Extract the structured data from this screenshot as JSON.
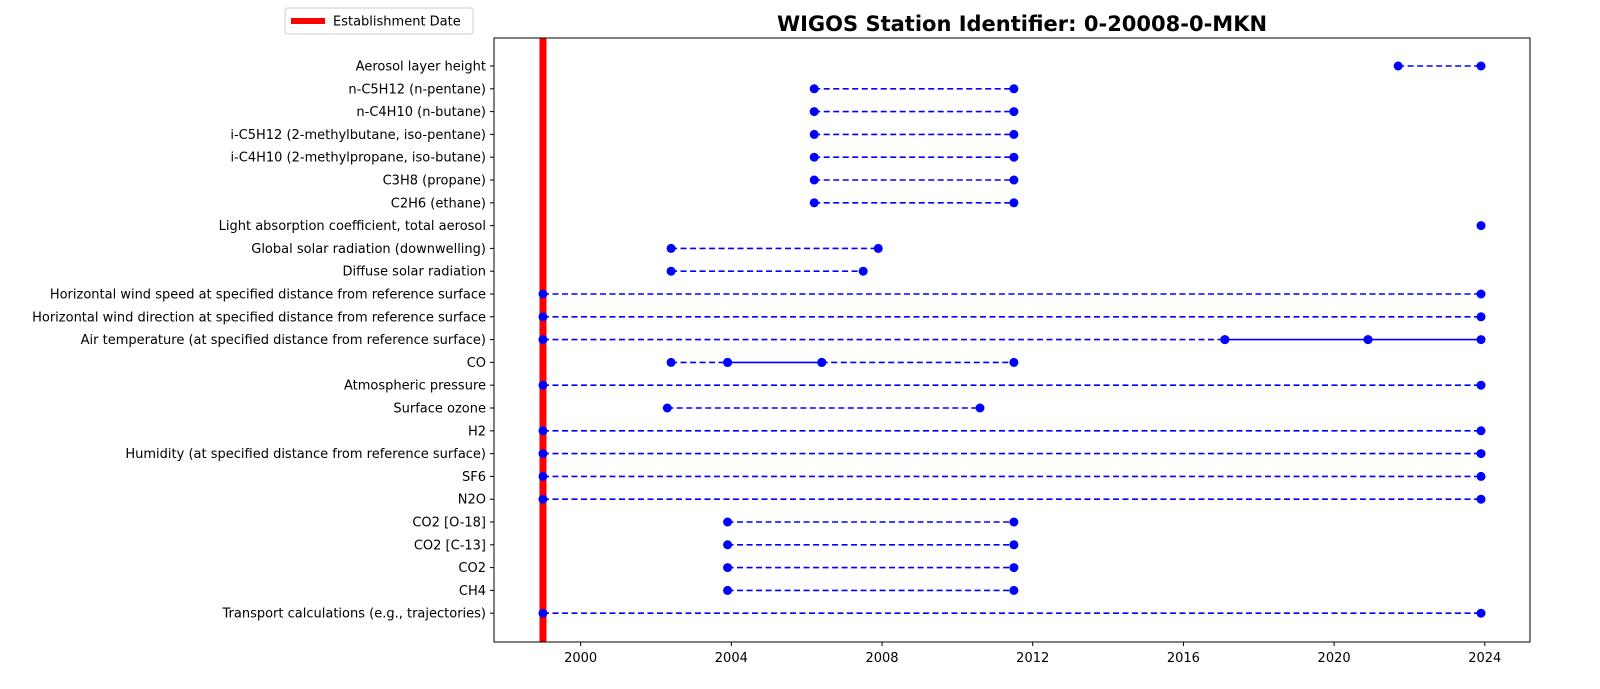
{
  "chart_data": {
    "type": "timeline",
    "title": "WIGOS Station Identifier: 0-20008-0-MKN",
    "xlabel": "",
    "ylabel": "",
    "xlim": [
      1997.7,
      2025.2
    ],
    "xticks": [
      "2000",
      "2004",
      "2008",
      "2012",
      "2016",
      "2020",
      "2024"
    ],
    "grid": false,
    "legend": {
      "placement": "top-left (outside, above axes)",
      "entries": [
        "Establishment Date"
      ]
    },
    "establishment_date": 1999.0,
    "colors": {
      "marker": "#0000ff",
      "line": "#0000ff",
      "establishment": "#ff0000",
      "axis": "#000000"
    },
    "line_styles": {
      "dashed": "observation gap / period",
      "solid": "continuous period"
    },
    "categories": [
      "Aerosol layer height",
      "n-C5H12 (n-pentane)",
      "n-C4H10 (n-butane)",
      "i-C5H12 (2-methylbutane, iso-pentane)",
      "i-C4H10 (2-methylpropane, iso-butane)",
      "C3H8 (propane)",
      "C2H6 (ethane)",
      "Light absorption coefficient, total aerosol",
      "Global solar radiation (downwelling)",
      "Diffuse solar radiation",
      "Horizontal wind speed at specified distance from reference surface",
      "Horizontal wind direction at specified distance from reference surface",
      "Air temperature (at specified distance from reference surface)",
      "CO",
      "Atmospheric pressure",
      "Surface ozone",
      "H2",
      "Humidity  (at specified distance from reference surface)",
      "SF6",
      "N2O",
      "CO2 [O-18]",
      "CO2 [C-13]",
      "CO2",
      "CH4",
      "Transport calculations (e.g., trajectories)"
    ],
    "series": [
      {
        "segments": [
          {
            "x": [
              2021.7,
              2023.9
            ],
            "style": "dashed"
          }
        ]
      },
      {
        "segments": [
          {
            "x": [
              2006.2,
              2011.5
            ],
            "style": "dashed"
          }
        ]
      },
      {
        "segments": [
          {
            "x": [
              2006.2,
              2011.5
            ],
            "style": "dashed"
          }
        ]
      },
      {
        "segments": [
          {
            "x": [
              2006.2,
              2011.5
            ],
            "style": "dashed"
          }
        ]
      },
      {
        "segments": [
          {
            "x": [
              2006.2,
              2011.5
            ],
            "style": "dashed"
          }
        ]
      },
      {
        "segments": [
          {
            "x": [
              2006.2,
              2011.5
            ],
            "style": "dashed"
          }
        ]
      },
      {
        "segments": [
          {
            "x": [
              2006.2,
              2011.5
            ],
            "style": "dashed"
          }
        ]
      },
      {
        "segments": [
          {
            "x": [
              2023.9
            ],
            "style": "point"
          }
        ]
      },
      {
        "segments": [
          {
            "x": [
              2002.4,
              2007.9
            ],
            "style": "dashed"
          }
        ]
      },
      {
        "segments": [
          {
            "x": [
              2002.4,
              2007.5
            ],
            "style": "dashed"
          }
        ]
      },
      {
        "segments": [
          {
            "x": [
              1999.0,
              2023.9
            ],
            "style": "dashed"
          }
        ]
      },
      {
        "segments": [
          {
            "x": [
              1999.0,
              2023.9
            ],
            "style": "dashed"
          }
        ]
      },
      {
        "segments": [
          {
            "x": [
              1999.0,
              2017.1
            ],
            "style": "dashed"
          },
          {
            "x": [
              2017.1,
              2020.9
            ],
            "style": "solid"
          },
          {
            "x": [
              2020.9,
              2023.9
            ],
            "style": "solid"
          }
        ]
      },
      {
        "segments": [
          {
            "x": [
              2002.4,
              2003.9
            ],
            "style": "dashed"
          },
          {
            "x": [
              2003.9,
              2006.4
            ],
            "style": "solid"
          },
          {
            "x": [
              2006.4,
              2011.5
            ],
            "style": "dashed"
          }
        ]
      },
      {
        "segments": [
          {
            "x": [
              1999.0,
              2023.9
            ],
            "style": "dashed"
          }
        ]
      },
      {
        "segments": [
          {
            "x": [
              2002.3,
              2010.6
            ],
            "style": "dashed"
          }
        ]
      },
      {
        "segments": [
          {
            "x": [
              1999.0,
              2023.9
            ],
            "style": "dashed"
          }
        ]
      },
      {
        "segments": [
          {
            "x": [
              1999.0,
              2023.9
            ],
            "style": "dashed"
          }
        ]
      },
      {
        "segments": [
          {
            "x": [
              1999.0,
              2023.9
            ],
            "style": "dashed"
          }
        ]
      },
      {
        "segments": [
          {
            "x": [
              1999.0,
              2023.9
            ],
            "style": "dashed"
          }
        ]
      },
      {
        "segments": [
          {
            "x": [
              2003.9,
              2011.5
            ],
            "style": "dashed"
          }
        ]
      },
      {
        "segments": [
          {
            "x": [
              2003.9,
              2011.5
            ],
            "style": "dashed"
          }
        ]
      },
      {
        "segments": [
          {
            "x": [
              2003.9,
              2011.5
            ],
            "style": "dashed"
          }
        ]
      },
      {
        "segments": [
          {
            "x": [
              2003.9,
              2011.5
            ],
            "style": "dashed"
          }
        ]
      },
      {
        "segments": [
          {
            "x": [
              1999.0,
              2023.9
            ],
            "style": "dashed"
          }
        ]
      }
    ]
  }
}
